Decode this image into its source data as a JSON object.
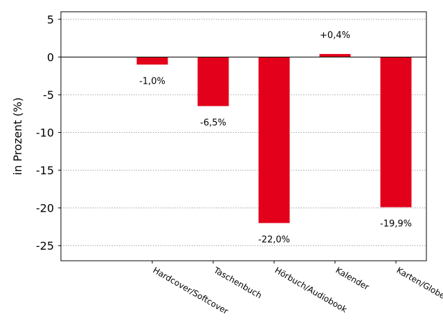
{
  "chart_data": {
    "type": "bar",
    "categories": [
      "Hardcover/Softcover",
      "Taschenbuch",
      "Hörbuch/Audiobook",
      "Kalender",
      "Karten/Globen"
    ],
    "values": [
      -1.0,
      -6.5,
      -22.0,
      0.4,
      -19.9
    ],
    "data_labels": [
      "-1,0%",
      "-6,5%",
      "-22,0%",
      "+0,4%",
      "-19,9%"
    ],
    "title": "",
    "xlabel": "",
    "ylabel": "in Prozent (%)",
    "ylim": [
      -27,
      6
    ],
    "yticks": [
      5,
      0,
      -5,
      -10,
      -15,
      -20,
      -25
    ],
    "ytick_labels": [
      "5",
      "0",
      "-5",
      "-10",
      "-15",
      "-20",
      "-25"
    ],
    "bar_color": "#e2001a",
    "grid": true,
    "zero_line": true
  }
}
